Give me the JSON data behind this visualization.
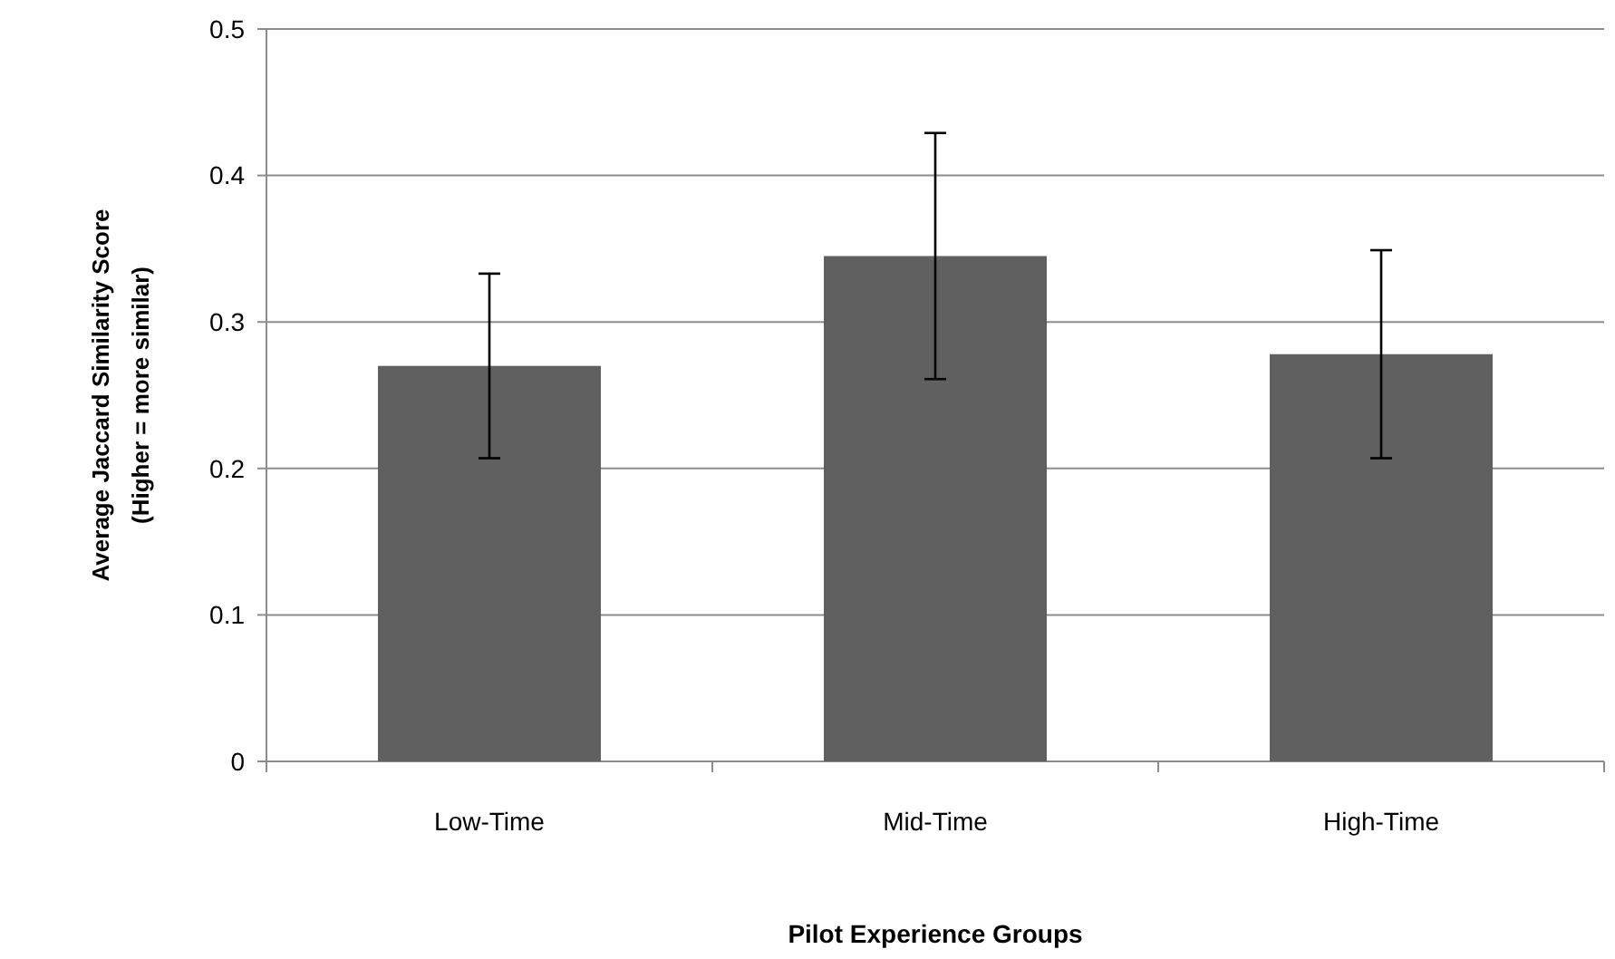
{
  "chart_data": {
    "type": "bar",
    "xlabel": "Pilot Experience Groups",
    "ylabel": "Average Jaccard  Similarity Score\n(Higher = more similar)",
    "categories": [
      "Low-Time",
      "Mid-Time",
      "High-Time"
    ],
    "values": [
      0.27,
      0.345,
      0.278
    ],
    "errors": [
      0.063,
      0.084,
      0.071
    ],
    "color": "#606060",
    "ylim": [
      0,
      0.5
    ],
    "yticks": [
      0,
      0.1,
      0.2,
      0.3,
      0.4,
      0.5
    ],
    "grid": "y"
  }
}
